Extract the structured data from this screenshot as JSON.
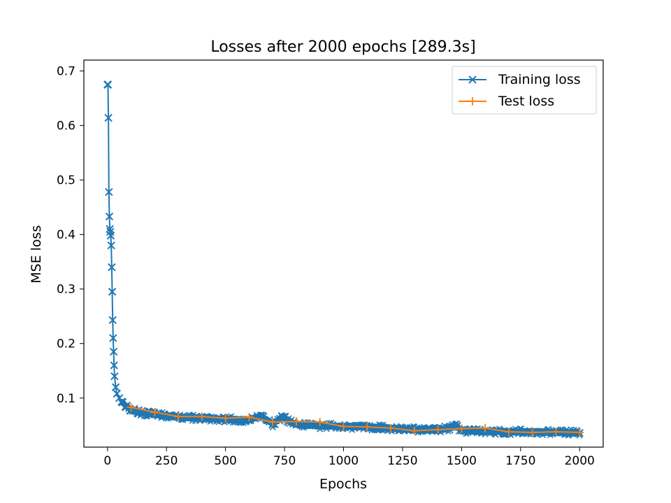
{
  "chart_data": {
    "type": "line",
    "title": "Losses after 2000 epochs [289.3s]",
    "xlabel": "Epochs",
    "ylabel": "MSE loss",
    "xlim": [
      -100,
      2100
    ],
    "ylim": [
      0.01,
      0.72
    ],
    "xticks": [
      0,
      250,
      500,
      750,
      1000,
      1250,
      1500,
      1750,
      2000
    ],
    "yticks": [
      0.1,
      0.2,
      0.3,
      0.4,
      0.5,
      0.6,
      0.7
    ],
    "grid": false,
    "legend_position": "top-right",
    "series": [
      {
        "name": "Training loss",
        "color": "#1f77b4",
        "marker": "x",
        "noise_band": 0.012,
        "x": [
          0,
          1,
          2,
          4,
          6,
          8,
          10,
          12,
          14,
          16,
          18,
          20,
          22,
          24,
          26,
          28,
          30,
          35,
          40,
          50,
          60,
          80,
          100,
          150,
          200,
          300,
          400,
          500,
          600,
          650,
          700,
          740,
          800,
          900,
          1000,
          1100,
          1200,
          1300,
          1400,
          1480,
          1500,
          1600,
          1700,
          1800,
          1900,
          2000
        ],
        "y": [
          0.675,
          0.675,
          0.675,
          0.614,
          0.478,
          0.433,
          0.41,
          0.405,
          0.398,
          0.38,
          0.34,
          0.295,
          0.243,
          0.21,
          0.185,
          0.16,
          0.14,
          0.12,
          0.108,
          0.1,
          0.093,
          0.085,
          0.078,
          0.073,
          0.07,
          0.065,
          0.063,
          0.061,
          0.06,
          0.067,
          0.052,
          0.066,
          0.051,
          0.049,
          0.048,
          0.047,
          0.045,
          0.042,
          0.041,
          0.048,
          0.04,
          0.039,
          0.038,
          0.038,
          0.037,
          0.036
        ]
      },
      {
        "name": "Test loss",
        "color": "#ff7f0e",
        "marker": "+",
        "x": [
          100,
          200,
          300,
          400,
          500,
          600,
          700,
          800,
          900,
          1000,
          1100,
          1200,
          1300,
          1400,
          1500,
          1600,
          1700,
          1800,
          1900,
          2000
        ],
        "y": [
          0.083,
          0.074,
          0.066,
          0.066,
          0.063,
          0.065,
          0.056,
          0.057,
          0.056,
          0.048,
          0.047,
          0.045,
          0.04,
          0.042,
          0.044,
          0.045,
          0.038,
          0.037,
          0.038,
          0.037
        ]
      }
    ]
  }
}
